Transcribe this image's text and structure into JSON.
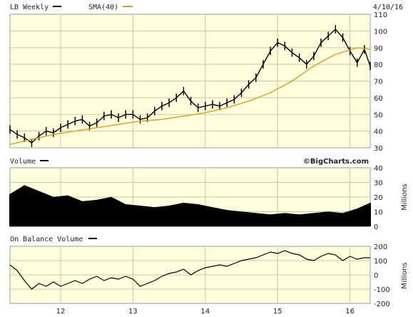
{
  "header": {
    "title": "LB Weekly",
    "sma_label": "SMA(40)",
    "date": "4/10/16"
  },
  "volume_header": {
    "title": "Volume",
    "watermark": "©BigCharts.com",
    "unit": "Millions"
  },
  "obv_header": {
    "title": "On Balance Volume",
    "unit": "Millions"
  },
  "colors": {
    "panel_bg": "#ffffdd",
    "grid": "#c8c8a0",
    "price": "#000000",
    "sma": "#d4a020",
    "frame": "#999999"
  },
  "chart_data": [
    {
      "type": "line",
      "panel": "price",
      "ylim": [
        30,
        110
      ],
      "yticks": [
        "110",
        "100",
        "90",
        "80",
        "70",
        "60",
        "50",
        "40",
        "30"
      ],
      "ytick_values": [
        110,
        100,
        90,
        80,
        70,
        60,
        50,
        40,
        30
      ],
      "x_categories": [
        "12",
        "13",
        "14",
        "15",
        "16"
      ],
      "x_tick_positions": [
        2012,
        2013,
        2014,
        2015,
        2016
      ],
      "xlim": [
        2011.3,
        2016.28
      ],
      "series": [
        {
          "name": "LB Weekly",
          "x": [
            2011.3,
            2011.4,
            2011.5,
            2011.6,
            2011.7,
            2011.8,
            2011.9,
            2012.0,
            2012.1,
            2012.2,
            2012.3,
            2012.4,
            2012.5,
            2012.6,
            2012.7,
            2012.8,
            2012.9,
            2013.0,
            2013.1,
            2013.2,
            2013.3,
            2013.4,
            2013.5,
            2013.6,
            2013.7,
            2013.8,
            2013.9,
            2014.0,
            2014.1,
            2014.2,
            2014.3,
            2014.4,
            2014.5,
            2014.6,
            2014.7,
            2014.8,
            2014.9,
            2015.0,
            2015.1,
            2015.2,
            2015.3,
            2015.4,
            2015.5,
            2015.6,
            2015.7,
            2015.8,
            2015.9,
            2016.0,
            2016.1,
            2016.2,
            2016.28
          ],
          "values": [
            41,
            38,
            36,
            33,
            37,
            40,
            39,
            42,
            44,
            46,
            47,
            43,
            45,
            49,
            50,
            48,
            50,
            50,
            47,
            48,
            52,
            55,
            57,
            60,
            64,
            58,
            54,
            55,
            56,
            55,
            57,
            59,
            63,
            68,
            72,
            80,
            88,
            93,
            91,
            87,
            84,
            80,
            85,
            93,
            97,
            101,
            96,
            88,
            81,
            89,
            79
          ]
        },
        {
          "name": "SMA(40)",
          "x": [
            2011.3,
            2011.6,
            2011.9,
            2012.2,
            2012.5,
            2012.8,
            2013.1,
            2013.4,
            2013.7,
            2014.0,
            2014.3,
            2014.6,
            2014.9,
            2015.2,
            2015.5,
            2015.8,
            2016.1,
            2016.28
          ],
          "values": [
            32,
            35,
            38,
            40,
            42,
            44,
            46,
            47,
            49,
            51,
            54,
            58,
            63,
            70,
            79,
            86,
            90,
            89
          ]
        }
      ]
    },
    {
      "type": "bar",
      "panel": "volume",
      "ylim": [
        0,
        40
      ],
      "yticks": [
        "40",
        "30",
        "20",
        "10",
        "0"
      ],
      "ytick_values": [
        40,
        30,
        20,
        10,
        0
      ],
      "x": [
        2011.3,
        2011.5,
        2011.7,
        2011.9,
        2012.1,
        2012.3,
        2012.5,
        2012.7,
        2012.9,
        2013.1,
        2013.3,
        2013.5,
        2013.7,
        2013.9,
        2014.1,
        2014.3,
        2014.5,
        2014.7,
        2014.9,
        2015.1,
        2015.3,
        2015.5,
        2015.7,
        2015.9,
        2016.1,
        2016.28
      ],
      "values": [
        22,
        28,
        24,
        20,
        21,
        17,
        18,
        20,
        15,
        14,
        13,
        14,
        16,
        15,
        13,
        11,
        10,
        9,
        8,
        9,
        8,
        9,
        10,
        9,
        12,
        16
      ]
    },
    {
      "type": "line",
      "panel": "obv",
      "ylim": [
        -200,
        200
      ],
      "yticks": [
        "200",
        "100",
        "0",
        "-100",
        "-200"
      ],
      "ytick_values": [
        200,
        100,
        0,
        -100,
        -200
      ],
      "x": [
        2011.3,
        2011.4,
        2011.5,
        2011.6,
        2011.7,
        2011.8,
        2011.9,
        2012.0,
        2012.1,
        2012.2,
        2012.3,
        2012.4,
        2012.5,
        2012.6,
        2012.7,
        2012.8,
        2012.9,
        2013.0,
        2013.1,
        2013.2,
        2013.3,
        2013.4,
        2013.5,
        2013.6,
        2013.7,
        2013.8,
        2013.9,
        2014.0,
        2014.1,
        2014.2,
        2014.3,
        2014.4,
        2014.5,
        2014.6,
        2014.7,
        2014.8,
        2014.9,
        2015.0,
        2015.1,
        2015.2,
        2015.3,
        2015.4,
        2015.5,
        2015.6,
        2015.7,
        2015.8,
        2015.9,
        2016.0,
        2016.1,
        2016.2,
        2016.28
      ],
      "values": [
        70,
        30,
        -40,
        -100,
        -60,
        -80,
        -50,
        -80,
        -60,
        -40,
        -60,
        -30,
        -10,
        -40,
        -20,
        -30,
        -10,
        -30,
        -80,
        -60,
        -40,
        -10,
        10,
        20,
        40,
        0,
        30,
        50,
        60,
        70,
        60,
        80,
        100,
        110,
        120,
        140,
        160,
        150,
        170,
        150,
        140,
        110,
        100,
        130,
        150,
        140,
        100,
        130,
        110,
        120,
        120
      ]
    }
  ]
}
